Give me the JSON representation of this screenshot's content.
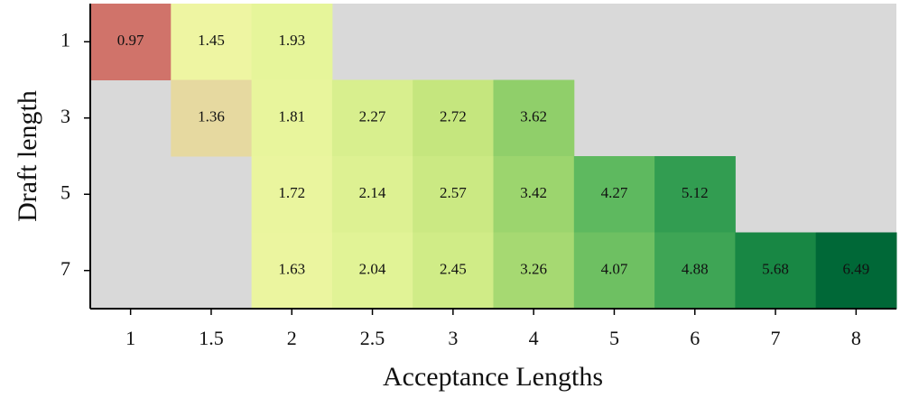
{
  "chart_data": {
    "type": "heatmap",
    "x_label": "Acceptance Lengths",
    "y_label": "Draft length",
    "categories": [
      "1",
      "1.5",
      "2",
      "2.5",
      "3",
      "4",
      "5",
      "6",
      "7",
      "8"
    ],
    "y_categories": [
      "1",
      "3",
      "5",
      "7"
    ],
    "values": [
      [
        0.97,
        1.45,
        1.93,
        null,
        null,
        null,
        null,
        null,
        null,
        null
      ],
      [
        null,
        1.36,
        1.81,
        2.27,
        2.72,
        3.62,
        null,
        null,
        null,
        null
      ],
      [
        null,
        null,
        1.72,
        2.14,
        2.57,
        3.42,
        4.27,
        5.12,
        null,
        null
      ],
      [
        null,
        null,
        1.63,
        2.04,
        2.45,
        3.26,
        4.07,
        4.88,
        5.68,
        6.49
      ]
    ],
    "missing_color": "#d9d9d9",
    "colorscale": [
      [
        0.97,
        "#d0736a"
      ],
      [
        1.36,
        "#e6d9a0"
      ],
      [
        1.45,
        "#eef5a2"
      ],
      [
        1.93,
        "#e6f59a"
      ],
      [
        2.7,
        "#c6e77e"
      ],
      [
        3.6,
        "#92d06a"
      ],
      [
        4.3,
        "#5cb85e"
      ],
      [
        5.2,
        "#2e9a50"
      ],
      [
        5.7,
        "#178643"
      ],
      [
        6.49,
        "#006837"
      ]
    ]
  }
}
